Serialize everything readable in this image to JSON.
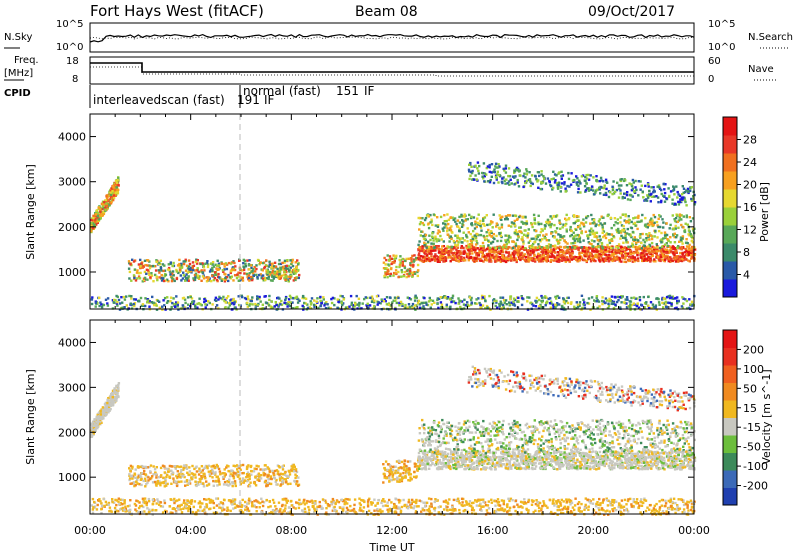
{
  "header": {
    "site": "Fort Hays West (fitACF)",
    "beam": "Beam 08",
    "date": "09/Oct/2017"
  },
  "labels": {
    "nsky": "N.Sky",
    "nsearch": "N.Search",
    "freq_top": "Freq.",
    "freq_unit": "[MHz]",
    "cpid": "CPID",
    "nave": "Nave",
    "ytick_1e5": "10^5",
    "ytick_1e0": "10^0",
    "rtick_1e5": "10^5",
    "rtick_1e0": "10^0",
    "freq_18": "18",
    "freq_8": "8",
    "nave_60": "60",
    "nave_0": "0",
    "cpid_1": "interleavedscan (fast)",
    "cpid_1_id": "191",
    "cpid_1_if": "IF",
    "cpid_2": "normal (fast)",
    "cpid_2_id": "151",
    "cpid_2_if": "IF",
    "xlabel": "Time UT"
  },
  "chart_data": [
    {
      "type": "heatmap",
      "panel": "power",
      "ylabel": "Slant Range [km]",
      "ylim": [
        180,
        4500
      ],
      "yticks": [
        1000,
        2000,
        3000,
        4000
      ],
      "x_ticks": [
        "00:00",
        "04:00",
        "08:00",
        "12:00",
        "16:00",
        "20:00",
        "00:00"
      ],
      "xlim_hours": [
        0,
        24
      ],
      "colorbar": {
        "label": "Power [dB]",
        "ticks": [
          "4",
          "8",
          "12",
          "16",
          "20",
          "24",
          "28"
        ],
        "colors": [
          "#1a1adc",
          "#2a5aa8",
          "#3b8a6a",
          "#58a858",
          "#9ad03a",
          "#e6d830",
          "#f7a020",
          "#f07020",
          "#e83828",
          "#e41414"
        ]
      }
    },
    {
      "type": "heatmap",
      "panel": "velocity",
      "ylabel": "Slant Range [km]",
      "ylim": [
        180,
        4500
      ],
      "yticks": [
        1000,
        2000,
        3000,
        4000
      ],
      "x_ticks": [
        "00:00",
        "04:00",
        "08:00",
        "12:00",
        "16:00",
        "20:00",
        "00:00"
      ],
      "xlim_hours": [
        0,
        24
      ],
      "colorbar": {
        "label": "Velocity [m s^-1]",
        "ticks": [
          "200",
          "100",
          "50",
          "15",
          "-15",
          "-50",
          "-100",
          "-200"
        ],
        "colors": [
          "#2040b0",
          "#3c6ab8",
          "#3c8a5a",
          "#6cbe3c",
          "#c8c8c0",
          "#f0b820",
          "#f08a20",
          "#f06020",
          "#e83020",
          "#e41414"
        ]
      }
    }
  ]
}
